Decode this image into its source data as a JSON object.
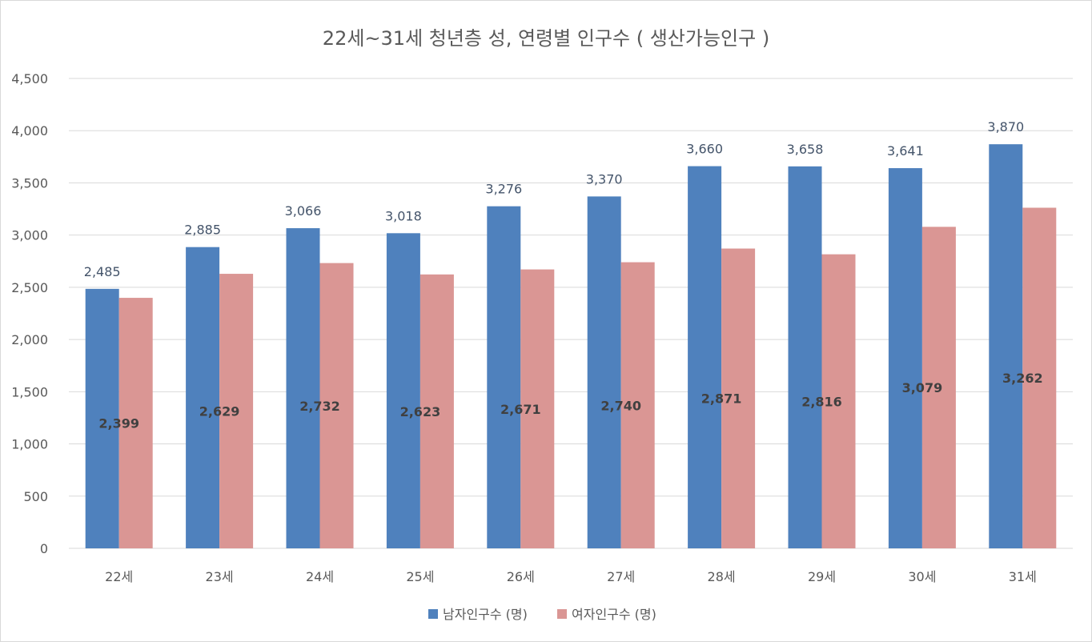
{
  "chart_data": {
    "type": "bar",
    "title": "22세~31세 청년층 성, 연령별 인구수 ( 생산가능인구 )",
    "categories": [
      "22세",
      "23세",
      "24세",
      "25세",
      "26세",
      "27세",
      "28세",
      "29세",
      "30세",
      "31세"
    ],
    "series": [
      {
        "name": "남자인구수 (명)",
        "color": "#4f81bd",
        "values": [
          2485,
          2885,
          3066,
          3018,
          3276,
          3370,
          3660,
          3658,
          3641,
          3870
        ]
      },
      {
        "name": "여자인구수 (명)",
        "color": "#da9694",
        "values": [
          2399,
          2629,
          2732,
          2623,
          2671,
          2740,
          2871,
          2816,
          3079,
          3262
        ]
      }
    ],
    "data_labels": {
      "male": [
        "2,485",
        "2,885",
        "3,066",
        "3,018",
        "3,276",
        "3,370",
        "3,660",
        "3,658",
        "3,641",
        "3,870"
      ],
      "female": [
        "2,399",
        "2,629",
        "2,732",
        "2,623",
        "2,671",
        "2,740",
        "2,871",
        "2,816",
        "3,079",
        "3,262"
      ]
    },
    "yticks": [
      "0",
      "500",
      "1,000",
      "1,500",
      "2,000",
      "2,500",
      "3,000",
      "3,500",
      "4,000",
      "4,500"
    ],
    "ylim": [
      0,
      4500
    ],
    "grid": true,
    "legend_position": "bottom"
  }
}
